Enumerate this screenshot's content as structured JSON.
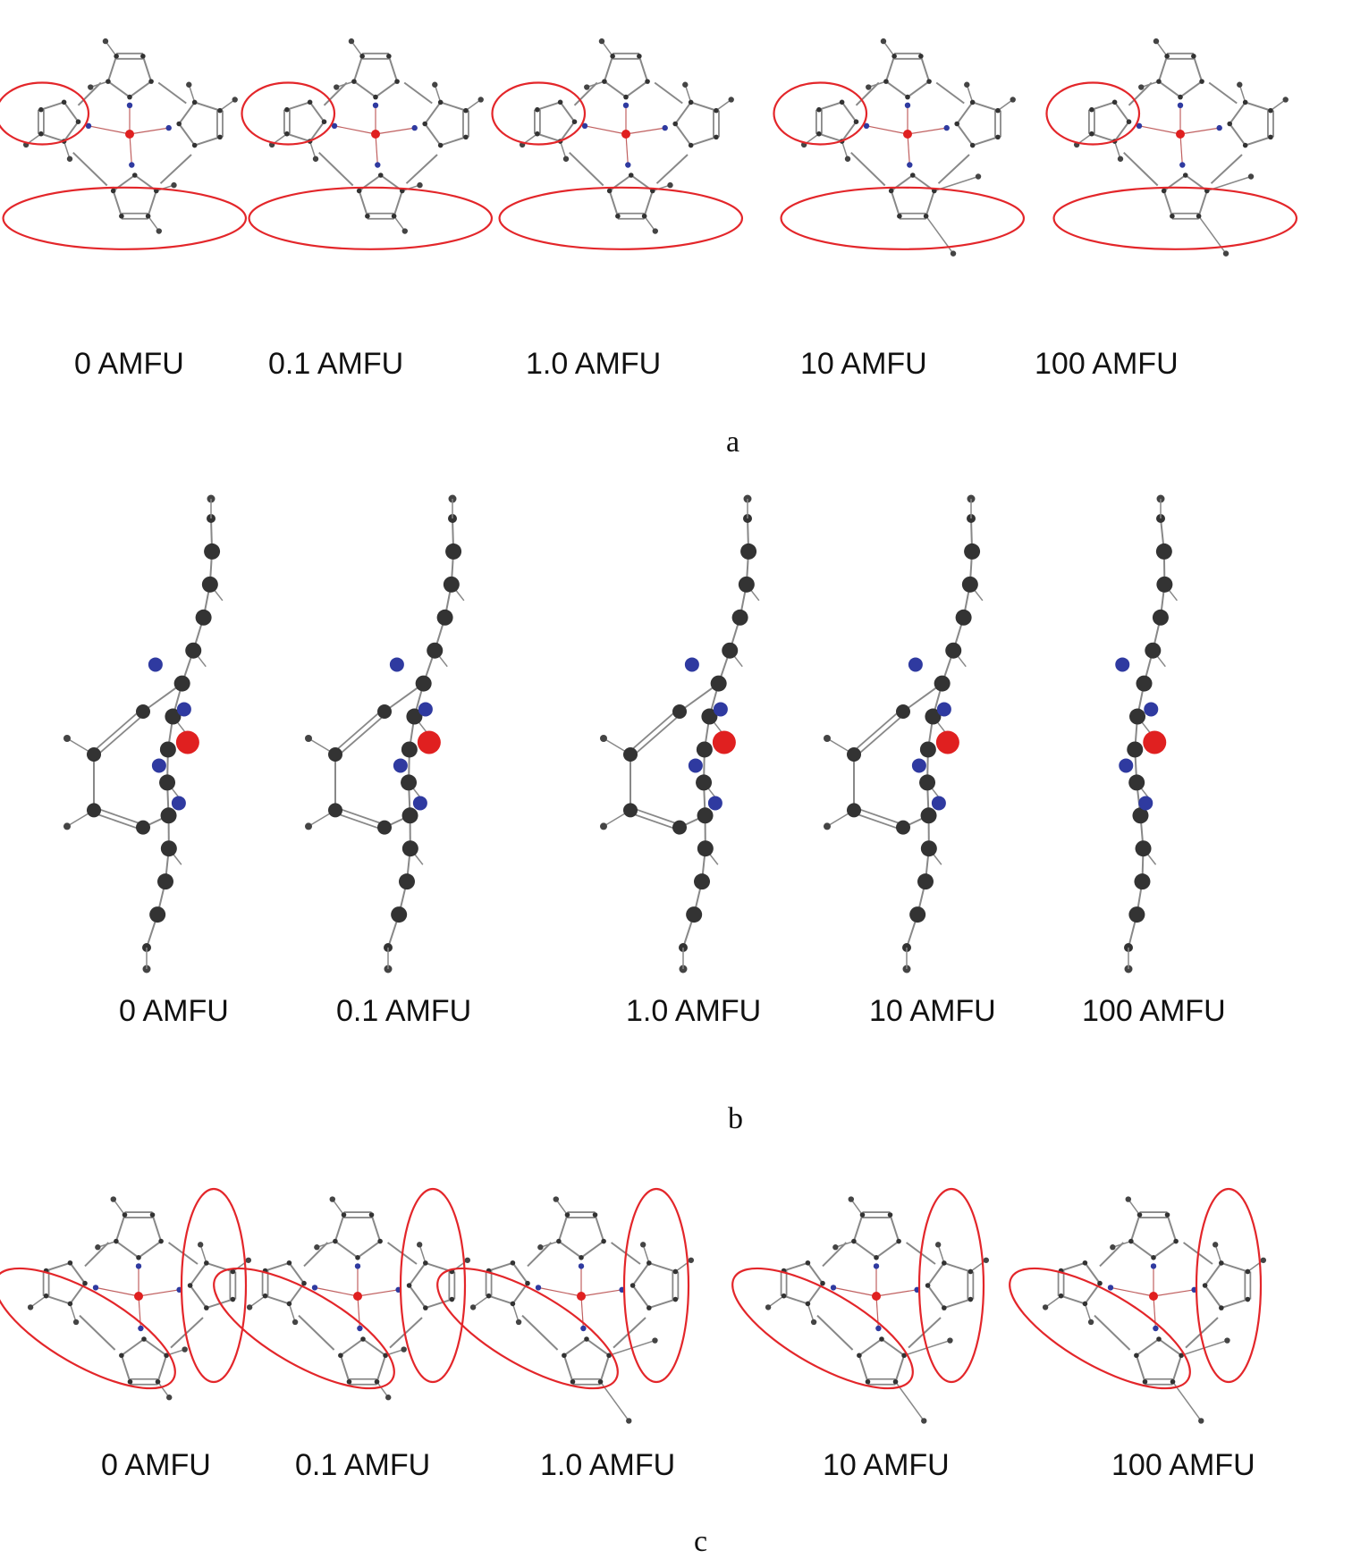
{
  "panels": [
    {
      "letter": "a",
      "view": "top",
      "labels": [
        "0 AMFU",
        "0.1 AMFU",
        "1.0 AMFU",
        "10 AMFU",
        "100 AMFU"
      ]
    },
    {
      "letter": "b",
      "view": "side",
      "labels": [
        "0 AMFU",
        "0.1 AMFU",
        "1.0 AMFU",
        "10 AMFU",
        "100 AMFU"
      ]
    },
    {
      "letter": "c",
      "view": "top-highlight-side",
      "labels": [
        "0 AMFU",
        "0.1 AMFU",
        "1.0 AMFU",
        "10 AMFU",
        "100 AMFU"
      ]
    }
  ],
  "colors": {
    "carbon": "#333333",
    "hydrogen": "#444444",
    "nitrogen": "#2f3aa0",
    "metal": "#e02020",
    "bond": "#888888",
    "highlight": "#e3262a"
  },
  "field_strength": [
    0,
    0.1,
    1.0,
    10,
    100
  ]
}
